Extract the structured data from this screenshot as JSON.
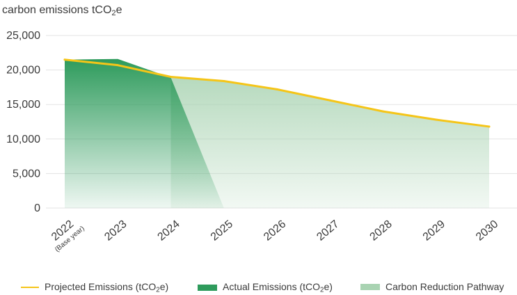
{
  "chart_data": {
    "type": "area",
    "title": {
      "main": "carbon emissions tCO",
      "sub": "2",
      "tail": "e"
    },
    "ylim": [
      0,
      25000
    ],
    "yticks": [
      0,
      5000,
      10000,
      15000,
      20000,
      25000
    ],
    "ytick_labels": [
      "0",
      "5,000",
      "10,000",
      "15,000",
      "20,000",
      "25,000"
    ],
    "categories": [
      "2022",
      "2023",
      "2024",
      "2025",
      "2026",
      "2027",
      "2028",
      "2029",
      "2030"
    ],
    "category_sublabels": {
      "2022": "(Base year)"
    },
    "grid": true,
    "series": [
      {
        "name": "Projected Emissions (tCO2e)",
        "label": {
          "main": "Projected Emissions (tCO",
          "sub": "2",
          "tail": "e)"
        },
        "kind": "line",
        "color": "#f5c518",
        "x": [
          2022,
          2023,
          2024,
          2025,
          2026,
          2027,
          2028,
          2029,
          2030
        ],
        "values": [
          21500,
          20700,
          19000,
          18400,
          17200,
          15600,
          14000,
          12800,
          11800
        ]
      },
      {
        "name": "Actual Emissions (tCO2e)",
        "label": {
          "main": "Actual Emissions (tCO",
          "sub": "2",
          "tail": "e)"
        },
        "kind": "area",
        "color": "#2e9b5c",
        "x": [
          2022,
          2023,
          2024,
          2025
        ],
        "values": [
          21500,
          21600,
          18900,
          0
        ]
      },
      {
        "name": "Carbon Reduction Pathway",
        "label": {
          "main": "Carbon Reduction Pathway",
          "sub": "",
          "tail": ""
        },
        "kind": "area",
        "color": "#a9d3b2",
        "x": [
          2024,
          2025,
          2026,
          2027,
          2028,
          2029,
          2030
        ],
        "values": [
          19000,
          18400,
          17200,
          15600,
          14000,
          12800,
          11800
        ]
      }
    ],
    "legend_position": "bottom"
  }
}
